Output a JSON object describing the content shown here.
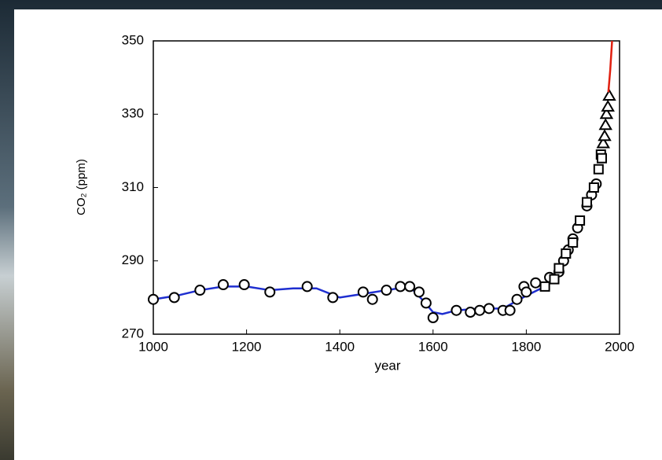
{
  "chart_data": {
    "type": "line",
    "xlabel": "year",
    "ylabel": "CO₂ (ppm)",
    "xlim": [
      1000,
      2000
    ],
    "xticks": [
      1000,
      1200,
      1400,
      1600,
      1800,
      2000
    ],
    "ylim": [
      270,
      350
    ],
    "yticks": [
      270,
      290,
      310,
      330,
      350
    ],
    "series": [
      {
        "marker": "line",
        "color": "#1f2fd0",
        "x": [
          1000,
          1050,
          1100,
          1150,
          1200,
          1250,
          1300,
          1350,
          1400,
          1450,
          1500,
          1550,
          1580,
          1600,
          1620,
          1650,
          1700,
          1750,
          1800,
          1840
        ],
        "values": [
          279.5,
          280.5,
          282,
          283,
          283,
          282,
          282.5,
          282.5,
          280,
          281,
          282,
          283,
          279,
          276,
          275.5,
          276.5,
          277,
          277,
          280.5,
          283
        ]
      },
      {
        "marker": "circle",
        "color": "#000000",
        "x": [
          1000,
          1045,
          1100,
          1150,
          1195,
          1250,
          1330,
          1385,
          1450,
          1470,
          1500,
          1530,
          1550,
          1570,
          1585,
          1600,
          1650,
          1680,
          1700,
          1720,
          1750,
          1765,
          1780,
          1795,
          1800,
          1820,
          1850,
          1870,
          1880,
          1890,
          1900,
          1910,
          1930,
          1940,
          1950
        ],
        "values": [
          279.5,
          280,
          282,
          283.5,
          283.5,
          281.5,
          283,
          280,
          281.5,
          279.5,
          282,
          283,
          283,
          281.5,
          278.5,
          274.5,
          276.5,
          276,
          276.5,
          277,
          276.5,
          276.5,
          279.5,
          283,
          281.5,
          284,
          285.5,
          287,
          290,
          293,
          296,
          299,
          305,
          308,
          311
        ]
      },
      {
        "marker": "square",
        "color": "#000000",
        "x": [
          1840,
          1860,
          1870,
          1885,
          1900,
          1915,
          1930,
          1945,
          1955,
          1960,
          1962
        ],
        "values": [
          283,
          285,
          288,
          292,
          295,
          301,
          306,
          310,
          315,
          319,
          318
        ]
      },
      {
        "marker": "triangle",
        "color": "#000000",
        "x": [
          1965,
          1968,
          1970,
          1972,
          1975,
          1978
        ],
        "values": [
          322,
          324,
          327,
          330,
          332,
          335
        ]
      },
      {
        "marker": "line",
        "color": "#e02010",
        "x": [
          1976,
          1980,
          1984
        ],
        "values": [
          336,
          342,
          350
        ]
      }
    ]
  }
}
